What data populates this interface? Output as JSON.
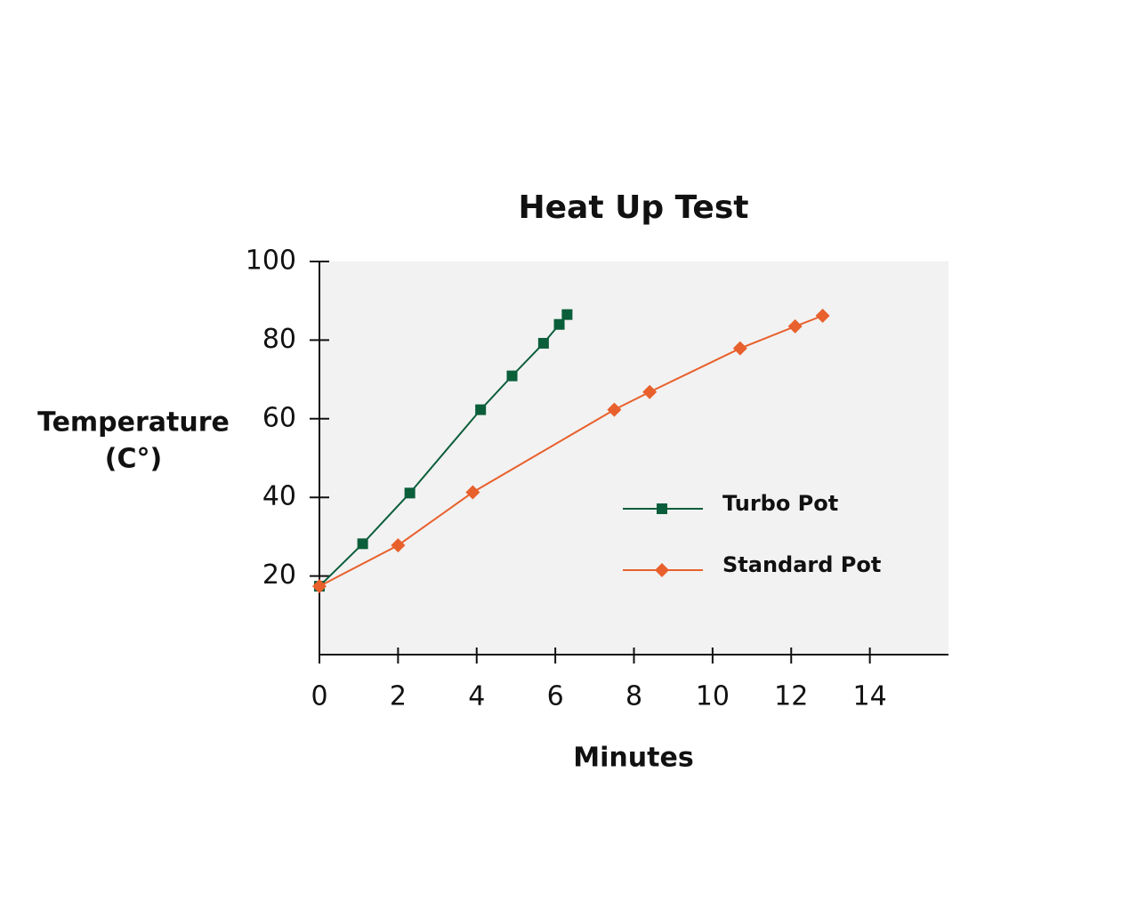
{
  "chart_data": {
    "type": "line",
    "title": "Heat Up Test",
    "xlabel": "Minutes",
    "ylabel": [
      "Temperature",
      "(C°)"
    ],
    "xlim": [
      0,
      16
    ],
    "xticks": [
      0,
      2,
      4,
      6,
      8,
      10,
      12,
      14
    ],
    "ylim": [
      0,
      100
    ],
    "yticks": [
      20,
      40,
      60,
      80,
      100
    ],
    "legend": "right",
    "background": "#f2f2f2",
    "series": [
      {
        "name": "Turbo Pot",
        "color": "#0b5e3a",
        "marker": "square",
        "x": [
          0,
          1.1,
          2.3,
          4.1,
          4.9,
          5.7,
          6.1,
          6.3
        ],
        "values": [
          17.4,
          28.2,
          41.1,
          62.3,
          70.9,
          79.2,
          84.0,
          86.5
        ]
      },
      {
        "name": "Standard Pot",
        "color": "#e8602c",
        "marker": "diamond",
        "x": [
          0,
          2.0,
          3.9,
          7.5,
          8.4,
          10.7,
          12.1,
          12.8
        ],
        "values": [
          17.4,
          27.8,
          41.3,
          62.3,
          66.8,
          77.9,
          83.5,
          86.2
        ]
      }
    ]
  }
}
